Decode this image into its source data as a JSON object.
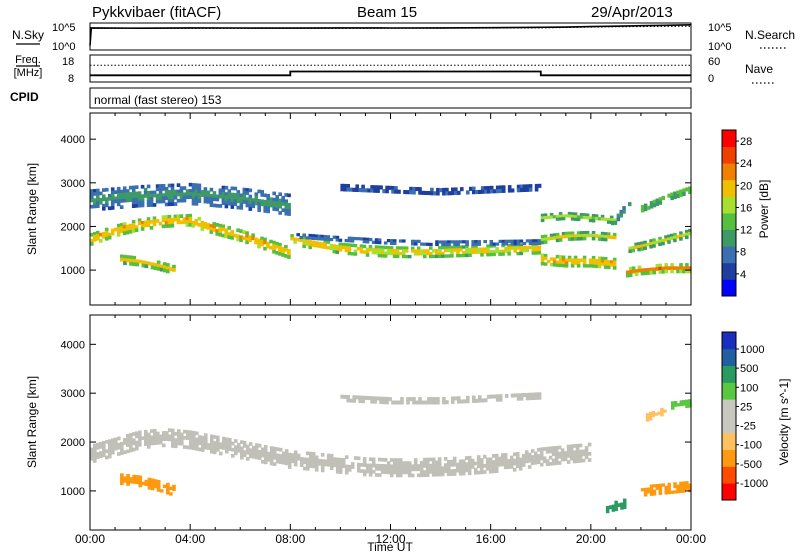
{
  "header": {
    "station": "Pykkvibaer (fitACF)",
    "beam": "Beam 15",
    "date": "29/Apr/2013"
  },
  "panel_labels": {
    "nsky": "N.Sky",
    "freq_top": "Freq.",
    "freq_unit": "[MHz]",
    "cpid": "CPID",
    "nsearch": "N.Search",
    "nave": "Nave",
    "cpid_text": "normal (fast stereo) 153"
  },
  "colors": {
    "power_scale": [
      "#0000ff",
      "#1f3fa0",
      "#3a6fb0",
      "#3d9a66",
      "#55c040",
      "#a8e030",
      "#f0c000",
      "#f08000",
      "#f04000",
      "#ff0000"
    ],
    "velocity_scale": [
      "#ff0000",
      "#ff4a00",
      "#ff9a10",
      "#ffc060",
      "#c8c8c0",
      "#c8c8c0",
      "#58c840",
      "#2a9a60",
      "#2060a0",
      "#1a2fc0"
    ],
    "ground_scatter": "#c0c0b8"
  },
  "chart_data": [
    {
      "type": "line",
      "name": "noise-panel",
      "left_axis": {
        "label": "N.Sky",
        "ticks": [
          "10^5",
          "10^0"
        ],
        "scale": "log"
      },
      "right_axis": {
        "label": "N.Search",
        "ticks": [
          "10^5",
          "10^0"
        ],
        "scale": "log"
      },
      "xlim": [
        0,
        24
      ],
      "series": [
        {
          "name": "N.Sky",
          "style": "solid",
          "x": [
            0,
            0.05,
            2,
            4,
            6,
            8,
            10,
            12,
            14,
            16,
            18,
            19,
            20,
            21,
            22,
            23,
            24
          ],
          "y": [
            1.0,
            4.9,
            4.85,
            4.9,
            4.88,
            4.86,
            4.9,
            4.88,
            4.92,
            4.95,
            5.05,
            5.1,
            5.2,
            5.3,
            5.4,
            5.5,
            5.6
          ]
        },
        {
          "name": "N.Search",
          "style": "dotted",
          "x": [
            0,
            4,
            8,
            12,
            16,
            18,
            19,
            20,
            21,
            22,
            23,
            24
          ],
          "y": [
            4.8,
            4.8,
            4.8,
            4.82,
            4.86,
            4.92,
            5.0,
            5.1,
            5.15,
            5.2,
            5.25,
            5.3
          ]
        }
      ]
    },
    {
      "type": "line",
      "name": "frequency-panel",
      "left_axis": {
        "label": "Freq. [MHz]",
        "ticks": [
          18,
          8
        ],
        "ylim": [
          8,
          18
        ]
      },
      "right_axis": {
        "label": "Nave",
        "ticks": [
          60,
          0
        ],
        "ylim": [
          0,
          60
        ]
      },
      "xlim": [
        0,
        24
      ],
      "series": [
        {
          "name": "Freq.",
          "style": "solid",
          "x": [
            0,
            8,
            8,
            18,
            18,
            24
          ],
          "y": [
            10.5,
            10.5,
            11.9,
            11.9,
            10.5,
            10.5
          ]
        },
        {
          "name": "Nave",
          "style": "dotted",
          "x": [
            0,
            24
          ],
          "y": [
            37,
            37
          ]
        }
      ],
      "annotation": "normal (fast stereo) 153"
    },
    {
      "type": "heatmap",
      "name": "power-panel",
      "ylabel": "Slant Range [km]",
      "yticks": [
        1000,
        2000,
        3000,
        4000
      ],
      "ylim": [
        200,
        4600
      ],
      "xlim": [
        0,
        24
      ],
      "colorbar": {
        "label": "Power [dB]",
        "ticks": [
          4,
          8,
          12,
          16,
          20,
          24,
          28
        ],
        "range": [
          0,
          30
        ]
      },
      "features": [
        {
          "desc": "main",
          "x": [
            0,
            1,
            2,
            3,
            4,
            5,
            6,
            7,
            7.99
          ],
          "range_km": [
            1700,
            1900,
            2050,
            2120,
            2150,
            1950,
            1800,
            1600,
            1400
          ],
          "width_km": 280,
          "power_db": 24
        },
        {
          "desc": "main",
          "x": [
            8,
            9,
            10,
            11,
            12,
            13,
            14,
            15,
            16,
            17,
            17.99
          ],
          "range_km": [
            1700,
            1600,
            1500,
            1450,
            1420,
            1410,
            1420,
            1440,
            1460,
            1480,
            1500
          ],
          "width_km": 260,
          "power_db": 22
        },
        {
          "desc": "band",
          "x": [
            8,
            10,
            12,
            14,
            16,
            18
          ],
          "range_km": [
            1800,
            1720,
            1650,
            1620,
            1630,
            1650
          ],
          "width_km": 120,
          "power_db": 8
        },
        {
          "desc": "upper",
          "x": [
            0,
            2,
            4,
            6,
            8
          ],
          "range_km": [
            2600,
            2700,
            2750,
            2650,
            2500
          ],
          "width_km": 500,
          "power_db": 10
        },
        {
          "desc": "arc",
          "x": [
            10,
            12,
            14,
            16,
            18
          ],
          "range_km": [
            2900,
            2850,
            2800,
            2850,
            2900
          ],
          "width_km": 160,
          "power_db": 6
        },
        {
          "desc": "blob",
          "x": [
            1.2,
            2.0,
            2.8,
            3.4
          ],
          "range_km": [
            1250,
            1200,
            1100,
            1000
          ],
          "width_km": 220,
          "power_db": 20
        },
        {
          "desc": "main",
          "x": [
            18,
            19,
            20,
            21
          ],
          "range_km": [
            1250,
            1200,
            1200,
            1150
          ],
          "width_km": 260,
          "power_db": 24
        },
        {
          "desc": "band",
          "x": [
            18,
            19,
            20,
            21
          ],
          "range_km": [
            1700,
            1780,
            1800,
            1750
          ],
          "width_km": 200,
          "power_db": 18
        },
        {
          "desc": "band",
          "x": [
            18,
            19,
            20,
            21
          ],
          "range_km": [
            2200,
            2250,
            2200,
            2150
          ],
          "width_km": 180,
          "power_db": 16
        },
        {
          "desc": "main",
          "x": [
            21.4,
            22,
            23,
            24
          ],
          "range_km": [
            950,
            1000,
            1050,
            1050
          ],
          "width_km": 220,
          "power_db": 24
        },
        {
          "desc": "band",
          "x": [
            21.5,
            22,
            23,
            24
          ],
          "range_km": [
            1500,
            1550,
            1700,
            1850
          ],
          "width_km": 200,
          "power_db": 18
        },
        {
          "desc": "band",
          "x": [
            22,
            23,
            24
          ],
          "range_km": [
            2400,
            2650,
            2850
          ],
          "width_km": 160,
          "power_db": 16
        },
        {
          "desc": "arc",
          "x": [
            20.8,
            21.2,
            21.6
          ],
          "range_km": [
            2000,
            2300,
            2600
          ],
          "width_km": 160,
          "power_db": 12
        }
      ]
    },
    {
      "type": "heatmap",
      "name": "velocity-panel",
      "ylabel": "Slant Range [km]",
      "yticks": [
        1000,
        2000,
        3000,
        4000
      ],
      "ylim": [
        200,
        4600
      ],
      "xlim": [
        0,
        24
      ],
      "xticks": [
        "00:00",
        "04:00",
        "08:00",
        "12:00",
        "16:00",
        "20:00",
        "00:00"
      ],
      "xlabel": "Time UT",
      "colorbar": {
        "label": "Velocity [m s^-1]",
        "ticks": [
          1000,
          500,
          100,
          25,
          -25,
          -100,
          -500,
          -1000
        ]
      },
      "features": [
        {
          "desc": "ground-scatter",
          "x": [
            0,
            1,
            2,
            3,
            4,
            5,
            6,
            7,
            8,
            9,
            10,
            11,
            12,
            13,
            14,
            15,
            16,
            17,
            18,
            19,
            20
          ],
          "range_km": [
            1750,
            1900,
            2050,
            2100,
            2050,
            1950,
            1850,
            1750,
            1650,
            1600,
            1550,
            1500,
            1480,
            1480,
            1500,
            1520,
            1560,
            1600,
            1700,
            1750,
            1800
          ],
          "width_km": 380,
          "velocity": 0
        },
        {
          "desc": "ground-scatter",
          "x": [
            10,
            12,
            14,
            16,
            18
          ],
          "range_km": [
            2900,
            2850,
            2850,
            2900,
            2950
          ],
          "width_km": 140,
          "velocity": 0
        },
        {
          "desc": "negative",
          "x": [
            1.2,
            2.0,
            2.8,
            3.4
          ],
          "range_km": [
            1250,
            1200,
            1100,
            1000
          ],
          "width_km": 230,
          "velocity": -400
        },
        {
          "desc": "negative",
          "x": [
            22,
            23,
            24
          ],
          "range_km": [
            1000,
            1050,
            1100
          ],
          "width_km": 220,
          "velocity": -400
        },
        {
          "desc": "positive",
          "x": [
            20.6,
            21.0,
            21.4
          ],
          "range_km": [
            650,
            700,
            750
          ],
          "width_km": 200,
          "velocity": 250
        },
        {
          "desc": "positive",
          "x": [
            23.2,
            24
          ],
          "range_km": [
            2750,
            2800
          ],
          "width_km": 160,
          "velocity": 120
        },
        {
          "desc": "negative",
          "x": [
            22.2,
            23
          ],
          "range_km": [
            2500,
            2650
          ],
          "width_km": 160,
          "velocity": -150
        }
      ]
    }
  ]
}
